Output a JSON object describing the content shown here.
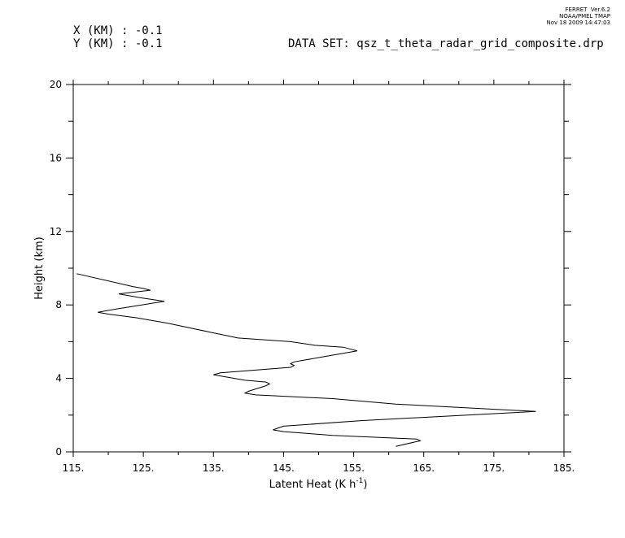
{
  "header": {
    "x_label": "X (KM) : -0.1",
    "y_label": "Y (KM) : -0.1",
    "dataset": "DATA SET: qsz_t_theta_radar_grid_composite.drp",
    "stamp": [
      "FERRET  Ver.6.2",
      "NOAA/PMEL TMAP",
      "Nov 18 2009 14:47:03"
    ]
  },
  "chart_data": {
    "type": "line",
    "xlabel": "Latent Heat (K h",
    "xlabel_sup": "-1",
    "xlabel_close": ")",
    "ylabel": "Height (km)",
    "xlim": [
      115,
      185
    ],
    "ylim": [
      0,
      20
    ],
    "x_ticks": [
      115,
      125,
      135,
      145,
      155,
      165,
      175,
      185
    ],
    "x_tick_labels": [
      "115.",
      "125.",
      "135.",
      "145.",
      "155.",
      "165.",
      "175.",
      "185."
    ],
    "y_ticks": [
      0,
      4,
      8,
      12,
      16,
      20
    ],
    "y_tick_labels": [
      "0",
      "4",
      "8",
      "12",
      "16",
      "20"
    ],
    "grid": false,
    "series": [
      {
        "points": [
          [
            161,
            0.3
          ],
          [
            164.5,
            0.6
          ],
          [
            164,
            0.7
          ],
          [
            152,
            0.9
          ],
          [
            145,
            1.1
          ],
          [
            143.5,
            1.2
          ],
          [
            145,
            1.4
          ],
          [
            156,
            1.7
          ],
          [
            181,
            2.2
          ],
          [
            161,
            2.6
          ],
          [
            158,
            2.7
          ],
          [
            155,
            2.8
          ],
          [
            152,
            2.9
          ],
          [
            141,
            3.1
          ],
          [
            139.5,
            3.2
          ],
          [
            140,
            3.3
          ],
          [
            142.5,
            3.6
          ],
          [
            143,
            3.7
          ],
          [
            142.5,
            3.8
          ],
          [
            139.5,
            3.9
          ],
          [
            135,
            4.2
          ],
          [
            136,
            4.3
          ],
          [
            146,
            4.6
          ],
          [
            146.5,
            4.7
          ],
          [
            146,
            4.8
          ],
          [
            146.5,
            4.9
          ],
          [
            151,
            5.2
          ],
          [
            155.5,
            5.5
          ],
          [
            153.5,
            5.7
          ],
          [
            149.5,
            5.8
          ],
          [
            146,
            6.0
          ],
          [
            138.5,
            6.2
          ],
          [
            136,
            6.4
          ],
          [
            128.5,
            7.0
          ],
          [
            124,
            7.3
          ],
          [
            120,
            7.5
          ],
          [
            118.5,
            7.6
          ],
          [
            121.5,
            7.8
          ],
          [
            128,
            8.2
          ],
          [
            124.5,
            8.4
          ],
          [
            121.5,
            8.6
          ],
          [
            126,
            8.8
          ],
          [
            125,
            8.9
          ],
          [
            123.5,
            9.0
          ],
          [
            115.5,
            9.7
          ]
        ]
      }
    ]
  }
}
